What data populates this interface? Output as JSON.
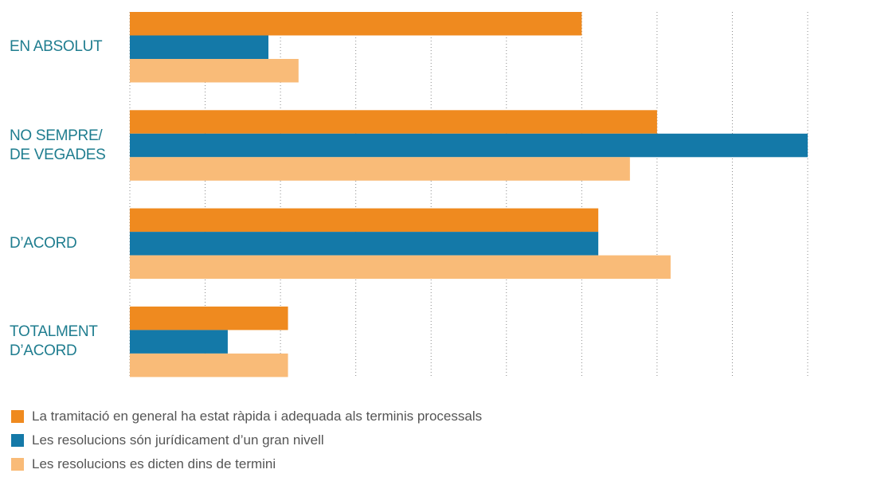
{
  "chart_data": {
    "type": "bar",
    "orientation": "horizontal",
    "categories": [
      "EN ABSOLUT",
      "NO SEMPRE/\nDE VEGADES",
      "D’ACORD",
      "TOTALMENT\nD’ACORD"
    ],
    "series": [
      {
        "name": "La tramitació en general ha estat ràpida i adequada als terminis processals",
        "color": "#ef8a1f",
        "values": [
          30.0,
          35.0,
          31.1,
          10.5
        ]
      },
      {
        "name": "Les resolucions són jurídicament d’un gran nivell",
        "color": "#1479a8",
        "values": [
          9.2,
          45.0,
          31.1,
          6.5
        ]
      },
      {
        "name": "Les resolucions es dicten dins de termini",
        "color": "#f9bb78",
        "values": [
          11.2,
          33.2,
          35.9,
          10.5
        ]
      }
    ],
    "xlim": [
      0,
      45
    ],
    "xticks": [
      0,
      5,
      10,
      15,
      20,
      25,
      30,
      35,
      40,
      45
    ],
    "grid": true,
    "legend": "bottom-left"
  }
}
